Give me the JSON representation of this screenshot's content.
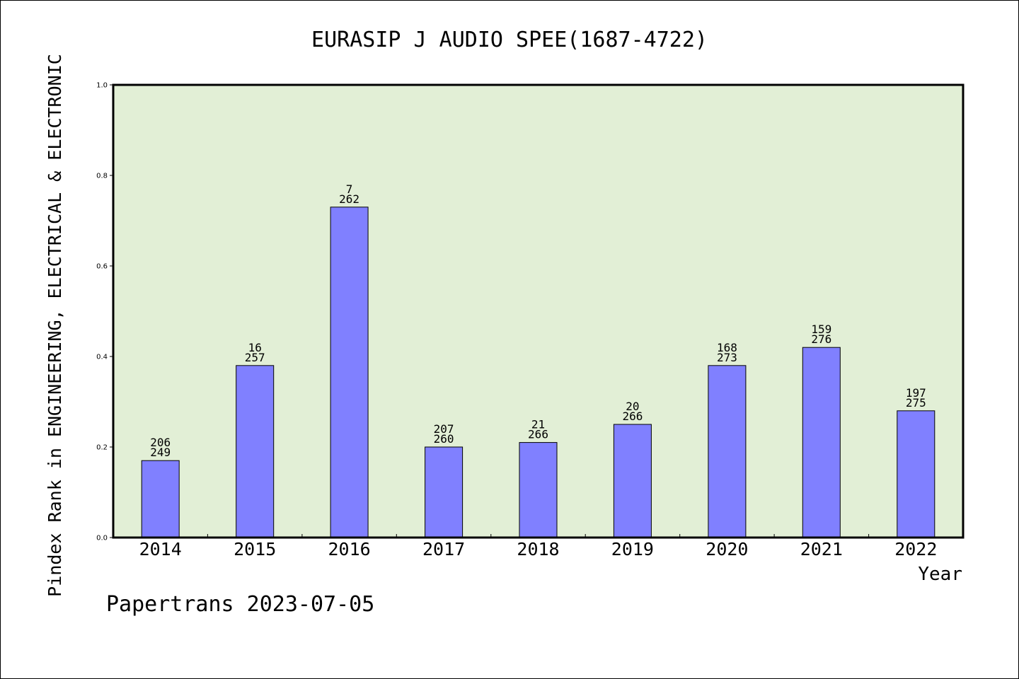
{
  "chart_data": {
    "type": "bar",
    "title": "EURASIP J AUDIO SPEE(1687-4722)",
    "xlabel": "Year",
    "ylabel": "Pindex Rank in ENGINEERING, ELECTRICAL & ELECTRONIC",
    "ylim": [
      0,
      1.0
    ],
    "yticks": [
      "0.0",
      "0.2",
      "0.4",
      "0.6",
      "0.8",
      "1.0"
    ],
    "ytick_values": [
      0.0,
      0.2,
      0.4,
      0.6,
      0.8,
      1.0
    ],
    "categories": [
      "2014",
      "2015",
      "2016",
      "2017",
      "2018",
      "2019",
      "2020",
      "2021",
      "2022"
    ],
    "values": [
      0.17,
      0.38,
      0.73,
      0.2,
      0.21,
      0.25,
      0.38,
      0.42,
      0.28
    ],
    "rank": [
      "206",
      "16",
      "7",
      "207",
      "21",
      "20",
      "168",
      "159",
      "197"
    ],
    "total": [
      "249",
      "257",
      "262",
      "260",
      "266",
      "266",
      "273",
      "276",
      "275"
    ],
    "bar_color": "#8080ff",
    "plot_bg": "#e2efd6",
    "grid": false
  },
  "footer": {
    "credit": "Papertrans 2023-07-05"
  }
}
